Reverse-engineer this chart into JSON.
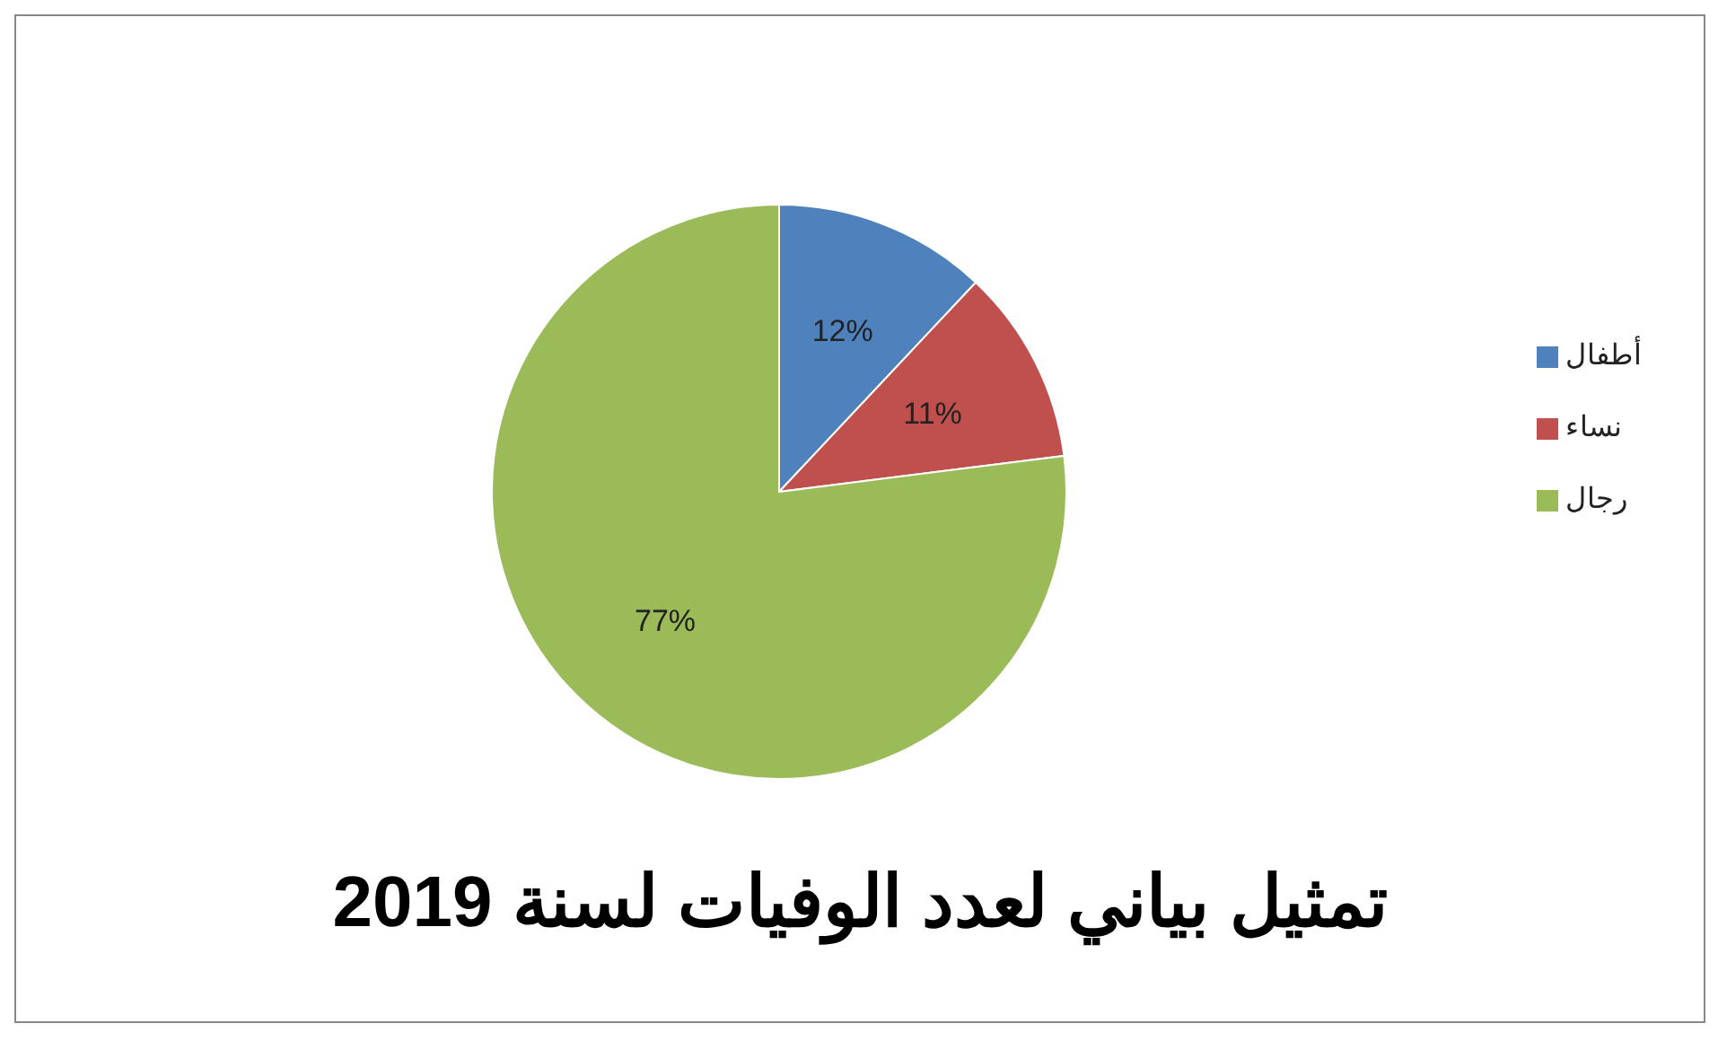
{
  "chart_data": {
    "type": "pie",
    "title": "تمثيل بياني لعدد الوفيات لسنة 2019",
    "categories": [
      "أطفال",
      "نساء",
      "رجال"
    ],
    "values": [
      12,
      11,
      77
    ],
    "colors": [
      "#4f81bd",
      "#c0504d",
      "#9bbb59"
    ],
    "value_labels": [
      "12%",
      "11%",
      "77%"
    ],
    "legend": "right"
  }
}
